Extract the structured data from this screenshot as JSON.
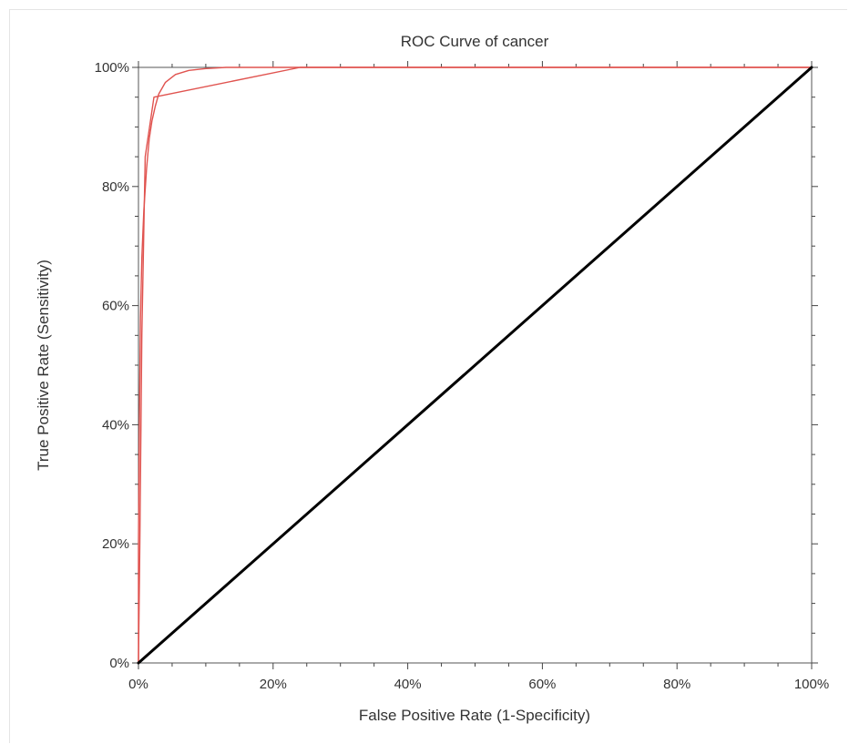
{
  "chart_data": {
    "type": "line",
    "title": "ROC Curve of cancer",
    "xlabel": "False Positive Rate (1-Specificity)",
    "ylabel": "True Positive Rate (Sensitivity)",
    "xlim": [
      0,
      100
    ],
    "ylim": [
      0,
      100
    ],
    "x_ticks": [
      0,
      20,
      40,
      60,
      80,
      100
    ],
    "y_ticks": [
      0,
      20,
      40,
      60,
      80,
      100
    ],
    "tick_suffix": "%",
    "grid": false,
    "series": [
      {
        "color": "#e0534f",
        "x": [
          0,
          0,
          0.1,
          0.2,
          0.3,
          0.5,
          0.8,
          1.2,
          1.6,
          2.0,
          2.5,
          3.0,
          4.0,
          5.5,
          7.5,
          10,
          13,
          16,
          100
        ],
        "y": [
          0,
          20,
          35,
          48,
          58,
          68,
          76,
          83,
          88,
          91,
          93.5,
          95.5,
          97.5,
          98.8,
          99.5,
          99.8,
          100,
          100,
          100
        ]
      },
      {
        "color": "#e0534f",
        "x": [
          0,
          0.2,
          0.5,
          1.0,
          2.3,
          24,
          100
        ],
        "y": [
          0,
          20,
          55,
          85,
          95,
          100,
          100
        ]
      },
      {
        "color": "#000000",
        "x": [
          0,
          100
        ],
        "y": [
          0,
          100
        ]
      }
    ]
  }
}
